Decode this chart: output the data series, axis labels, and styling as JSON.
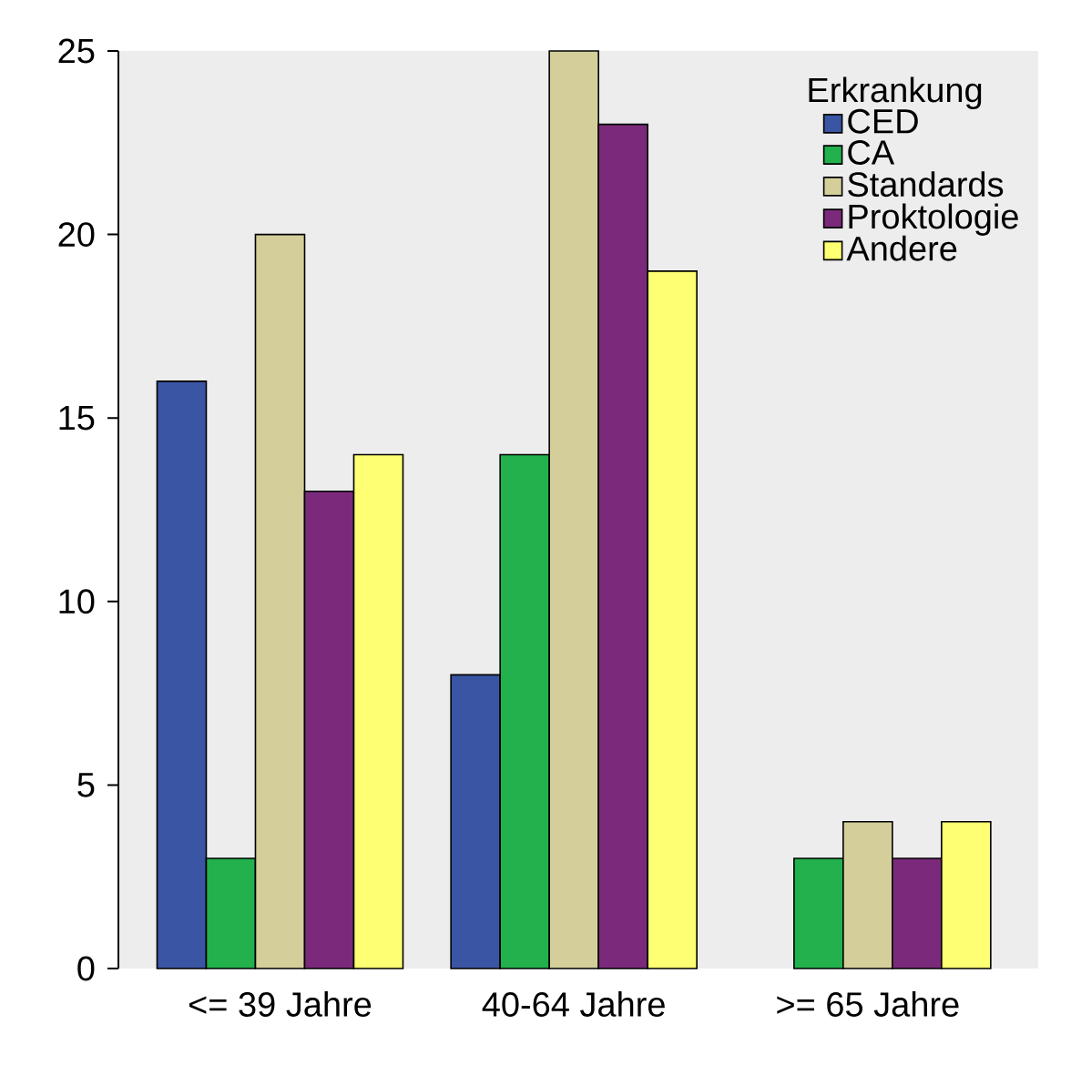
{
  "chart_data": {
    "type": "bar",
    "legend_title": "Erkrankung",
    "categories": [
      "<= 39 Jahre",
      "40-64 Jahre",
      ">= 65 Jahre"
    ],
    "series": [
      {
        "name": "CED",
        "color": "#3a55a4",
        "values": [
          16,
          8,
          null
        ]
      },
      {
        "name": "CA",
        "color": "#22b14c",
        "values": [
          3,
          14,
          3
        ]
      },
      {
        "name": "Standards",
        "color": "#d4cf9a",
        "values": [
          20,
          25,
          4
        ]
      },
      {
        "name": "Proktologie",
        "color": "#7b2a7b",
        "values": [
          13,
          23,
          3
        ]
      },
      {
        "name": "Andere",
        "color": "#ffff73",
        "values": [
          14,
          19,
          4
        ]
      }
    ],
    "ylim": [
      0,
      25
    ],
    "yticks": [
      0,
      5,
      10,
      15,
      20,
      25
    ],
    "legend": "top right",
    "grid": false
  }
}
